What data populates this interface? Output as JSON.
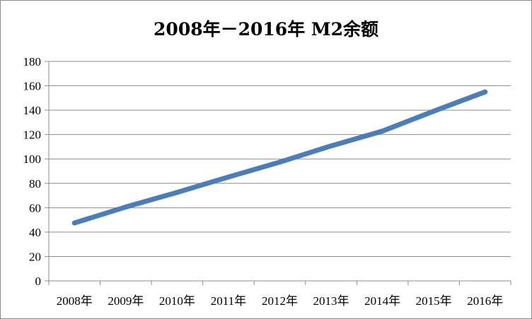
{
  "chart_data": {
    "type": "line",
    "title": "2008年－2016年  M2余额",
    "xlabel": "",
    "ylabel": "",
    "categories": [
      "2008年",
      "2009年",
      "2010年",
      "2011年",
      "2012年",
      "2013年",
      "2014年",
      "2015年",
      "2016年"
    ],
    "series": [
      {
        "values": [
          47.5,
          60.6,
          72.6,
          85.2,
          97.4,
          110.7,
          122.8,
          139.2,
          155.0
        ]
      }
    ],
    "ylim": [
      0,
      180
    ],
    "yticks": [
      0,
      20,
      40,
      60,
      80,
      100,
      120,
      140,
      160,
      180
    ],
    "grid": true,
    "legend": "none",
    "line_color": "#4a7ebb"
  }
}
